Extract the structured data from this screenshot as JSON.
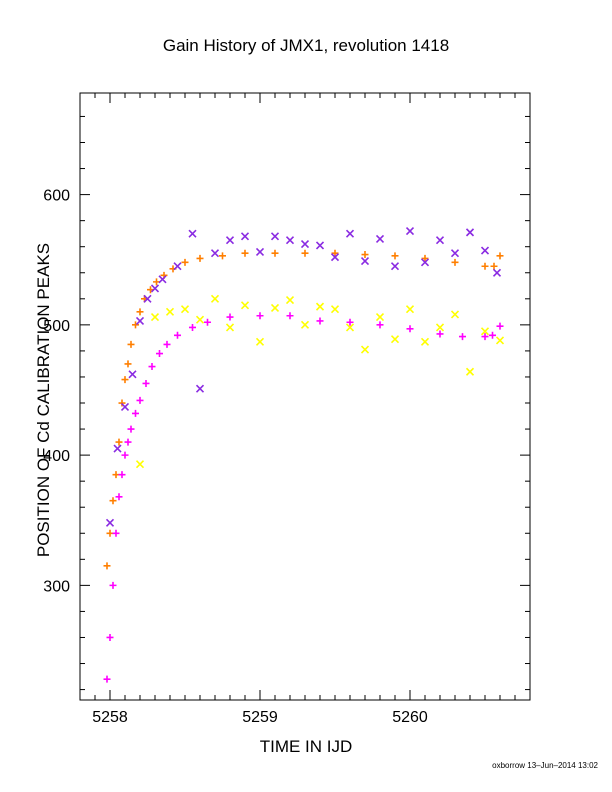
{
  "chart_data": {
    "type": "scatter",
    "title": "Gain History of JMX1, revolution 1418",
    "xlabel": "TIME IN IJD",
    "ylabel": "POSITION OF Cd CALIBRATION PEAKS",
    "xlim": [
      5257.8,
      5260.8
    ],
    "ylim": [
      212,
      678
    ],
    "x_ticks": [
      5258,
      5259,
      5260
    ],
    "x_tick_labels": [
      "5258",
      "5259",
      "5260"
    ],
    "y_ticks": [
      300,
      400,
      500,
      600
    ],
    "y_tick_labels": [
      "300",
      "400",
      "500",
      "600"
    ],
    "grid": false,
    "legend": "none",
    "series": [
      {
        "color": "#ff7f00",
        "marker": "plus",
        "x": [
          5257.98,
          5258.0,
          5258.02,
          5258.04,
          5258.06,
          5258.08,
          5258.1,
          5258.12,
          5258.14,
          5258.17,
          5258.2,
          5258.23,
          5258.27,
          5258.31,
          5258.36,
          5258.42,
          5258.5,
          5258.6,
          5258.75,
          5258.9,
          5259.1,
          5259.3,
          5259.5,
          5259.7,
          5259.9,
          5260.1,
          5260.3,
          5260.5,
          5260.56,
          5260.6
        ],
        "y": [
          315,
          340,
          365,
          385,
          410,
          440,
          458,
          470,
          485,
          500,
          510,
          520,
          527,
          533,
          538,
          543,
          548,
          551,
          553,
          555,
          555,
          555,
          555,
          554,
          553,
          551,
          548,
          545,
          545,
          553
        ]
      },
      {
        "color": "#ff00ff",
        "marker": "plus",
        "x": [
          5257.98,
          5258.0,
          5258.02,
          5258.04,
          5258.06,
          5258.08,
          5258.1,
          5258.12,
          5258.14,
          5258.17,
          5258.2,
          5258.24,
          5258.28,
          5258.33,
          5258.38,
          5258.45,
          5258.55,
          5258.65,
          5258.8,
          5259.0,
          5259.2,
          5259.4,
          5259.6,
          5259.8,
          5260.0,
          5260.2,
          5260.35,
          5260.5,
          5260.55,
          5260.6
        ],
        "y": [
          228,
          260,
          300,
          340,
          368,
          385,
          400,
          410,
          420,
          432,
          442,
          455,
          468,
          478,
          485,
          492,
          498,
          502,
          506,
          507,
          507,
          503,
          502,
          500,
          497,
          493,
          491,
          491,
          492,
          499
        ]
      },
      {
        "color": "#8a2be2",
        "marker": "x",
        "x": [
          5258.0,
          5258.05,
          5258.1,
          5258.15,
          5258.2,
          5258.25,
          5258.3,
          5258.35,
          5258.45,
          5258.55,
          5258.6,
          5258.7,
          5258.8,
          5258.9,
          5259.0,
          5259.1,
          5259.2,
          5259.3,
          5259.4,
          5259.5,
          5259.6,
          5259.7,
          5259.8,
          5259.9,
          5260.0,
          5260.1,
          5260.2,
          5260.3,
          5260.4,
          5260.5,
          5260.58
        ],
        "y": [
          348,
          405,
          437,
          462,
          503,
          520,
          528,
          535,
          545,
          570,
          451,
          555,
          565,
          568,
          556,
          568,
          565,
          562,
          561,
          552,
          570,
          549,
          566,
          545,
          572,
          548,
          565,
          555,
          571,
          557,
          540
        ]
      },
      {
        "color": "#ffff00",
        "marker": "x",
        "x": [
          5258.2,
          5258.3,
          5258.4,
          5258.5,
          5258.6,
          5258.7,
          5258.8,
          5258.9,
          5259.0,
          5259.1,
          5259.2,
          5259.3,
          5259.4,
          5259.5,
          5259.6,
          5259.7,
          5259.8,
          5259.9,
          5260.0,
          5260.1,
          5260.2,
          5260.3,
          5260.4,
          5260.5,
          5260.6
        ],
        "y": [
          393,
          506,
          510,
          512,
          504,
          520,
          498,
          515,
          487,
          513,
          519,
          500,
          514,
          512,
          498,
          481,
          506,
          489,
          512,
          487,
          498,
          508,
          464,
          495,
          488
        ]
      }
    ]
  },
  "footer": "oxborrow 13–Jun–2014 13:02"
}
